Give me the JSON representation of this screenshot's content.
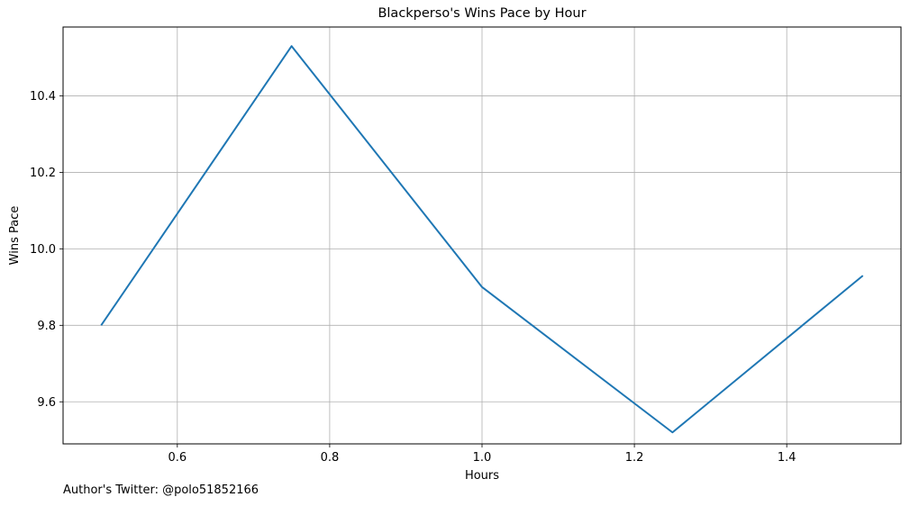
{
  "chart_data": {
    "type": "line",
    "title": "Blackperso's Wins Pace by Hour",
    "xlabel": "Hours",
    "ylabel": "Wins Pace",
    "xlim": [
      0.45,
      1.55
    ],
    "ylim": [
      9.49,
      10.58
    ],
    "xticks": [
      "0.6",
      "0.8",
      "1.0",
      "1.2",
      "1.4"
    ],
    "yticks": [
      "9.6",
      "9.8",
      "10.0",
      "10.2",
      "10.4"
    ],
    "grid": true,
    "color": "#1f77b4",
    "x": [
      0.5,
      0.75,
      1.0,
      1.25,
      1.5
    ],
    "y": [
      9.8,
      10.53,
      9.9,
      9.52,
      9.93
    ]
  },
  "footer": {
    "credit": "Author's Twitter: @polo51852166"
  }
}
